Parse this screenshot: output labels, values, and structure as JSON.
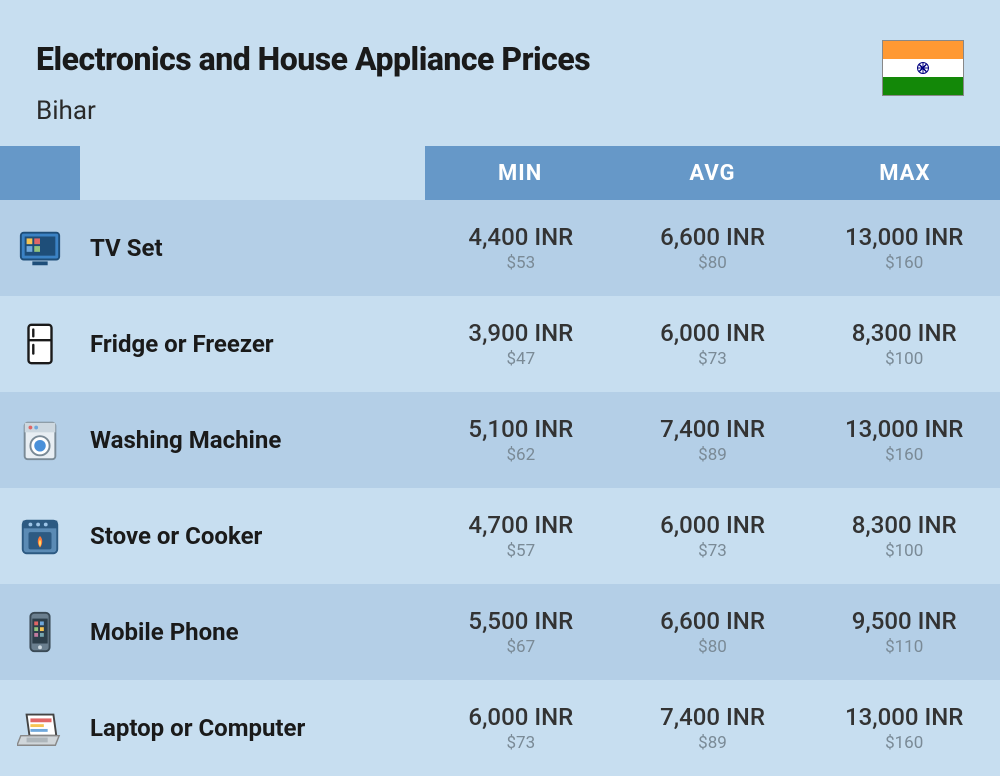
{
  "header": {
    "title": "Electronics and House Appliance Prices",
    "subtitle": "Bihar"
  },
  "columns": {
    "min": "MIN",
    "avg": "AVG",
    "max": "MAX"
  },
  "rows": [
    {
      "icon": "tv",
      "name": "TV Set",
      "min_inr": "4,400 INR",
      "min_usd": "$53",
      "avg_inr": "6,600 INR",
      "avg_usd": "$80",
      "max_inr": "13,000 INR",
      "max_usd": "$160"
    },
    {
      "icon": "fridge",
      "name": "Fridge or Freezer",
      "min_inr": "3,900 INR",
      "min_usd": "$47",
      "avg_inr": "6,000 INR",
      "avg_usd": "$73",
      "max_inr": "8,300 INR",
      "max_usd": "$100"
    },
    {
      "icon": "washer",
      "name": "Washing Machine",
      "min_inr": "5,100 INR",
      "min_usd": "$62",
      "avg_inr": "7,400 INR",
      "avg_usd": "$89",
      "max_inr": "13,000 INR",
      "max_usd": "$160"
    },
    {
      "icon": "stove",
      "name": "Stove or Cooker",
      "min_inr": "4,700 INR",
      "min_usd": "$57",
      "avg_inr": "6,000 INR",
      "avg_usd": "$73",
      "max_inr": "8,300 INR",
      "max_usd": "$100"
    },
    {
      "icon": "phone",
      "name": "Mobile Phone",
      "min_inr": "5,500 INR",
      "min_usd": "$67",
      "avg_inr": "6,600 INR",
      "avg_usd": "$80",
      "max_inr": "9,500 INR",
      "max_usd": "$110"
    },
    {
      "icon": "laptop",
      "name": "Laptop or Computer",
      "min_inr": "6,000 INR",
      "min_usd": "$73",
      "avg_inr": "7,400 INR",
      "avg_usd": "$89",
      "max_inr": "13,000 INR",
      "max_usd": "$160"
    }
  ],
  "colors": {
    "page_bg": "#c7def0",
    "header_bg": "#6698c8",
    "row_odd": "#b4cfe7",
    "row_even": "#c7def0",
    "text_dark": "#1a1a1a",
    "text_muted": "#7a8a96"
  }
}
